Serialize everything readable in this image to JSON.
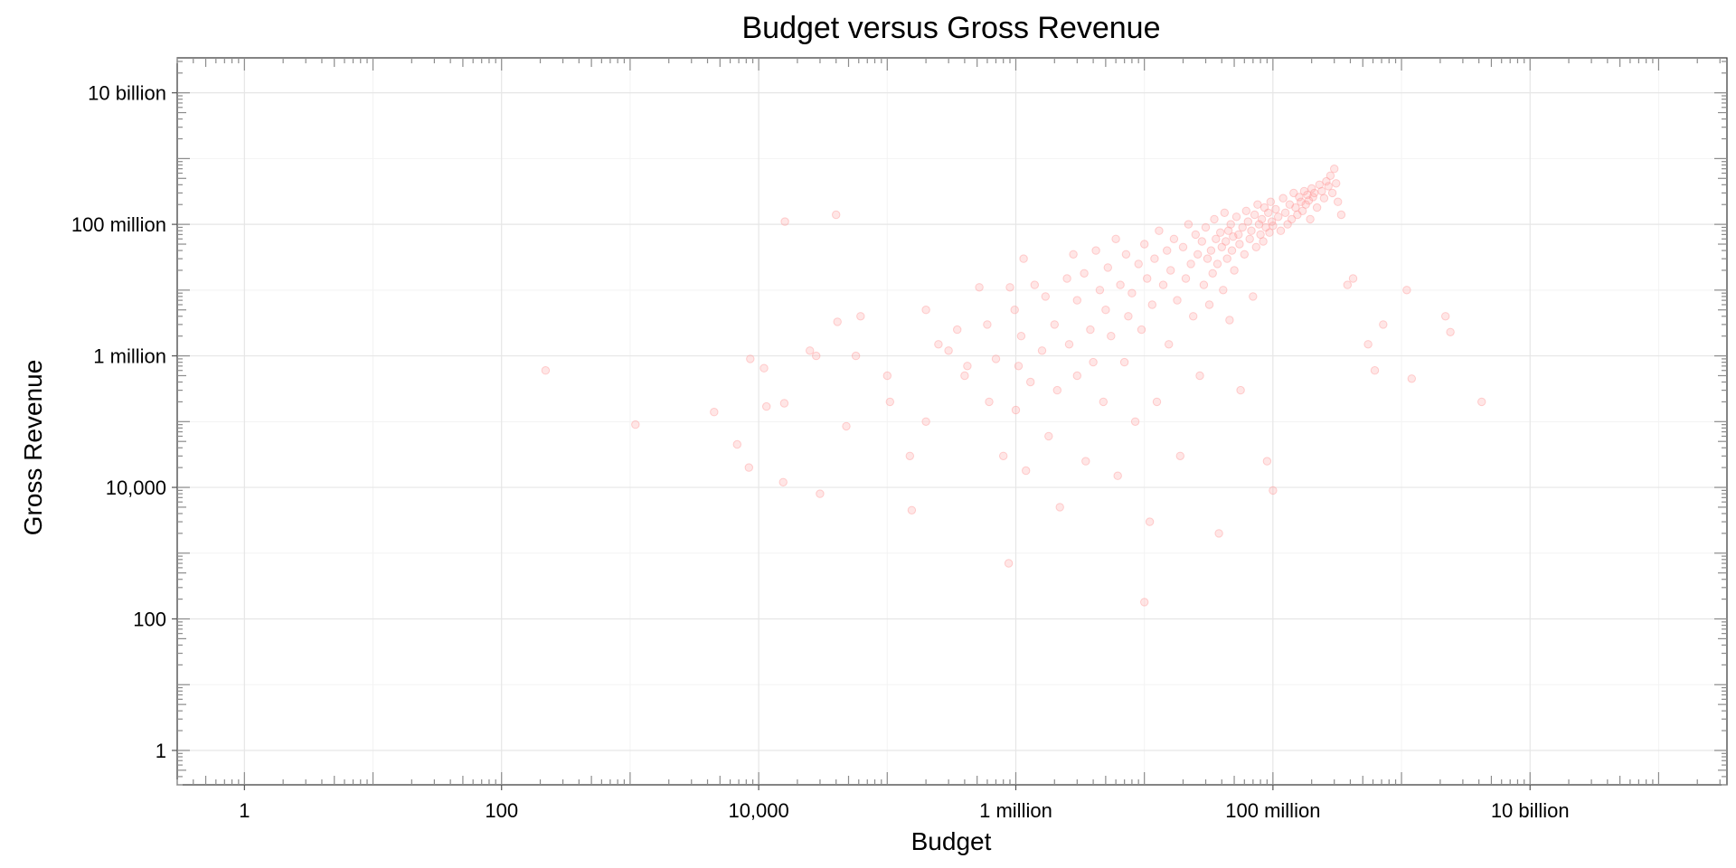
{
  "chart_data": {
    "type": "scatter",
    "title": "Budget versus Gross Revenue",
    "xlabel": "Budget",
    "ylabel": "Gross Revenue",
    "x_scale": "log10",
    "y_scale": "log10",
    "xlim": [
      0.3,
      340000000000
    ],
    "ylim": [
      0.3,
      34000000000
    ],
    "x_ticks": [
      {
        "value": 1,
        "label": "1"
      },
      {
        "value": 100,
        "label": "100"
      },
      {
        "value": 10000,
        "label": "10,000"
      },
      {
        "value": 1000000,
        "label": "1 million"
      },
      {
        "value": 100000000,
        "label": "100 million"
      },
      {
        "value": 10000000000,
        "label": "10 billion"
      }
    ],
    "y_ticks": [
      {
        "value": 1,
        "label": "1"
      },
      {
        "value": 100,
        "label": "100"
      },
      {
        "value": 10000,
        "label": "10,000"
      },
      {
        "value": 1000000,
        "label": "1 million"
      },
      {
        "value": 100000000,
        "label": "100 million"
      },
      {
        "value": 10000000000,
        "label": "10 billion"
      }
    ],
    "grid": true,
    "legend": "none",
    "point_color": "#ff9a9a",
    "point_alpha": 0.25,
    "points": [
      [
        220,
        600000
      ],
      [
        1100,
        90000
      ],
      [
        4500,
        140000
      ],
      [
        6800,
        45000
      ],
      [
        8400,
        20000
      ],
      [
        8600,
        900000
      ],
      [
        11000,
        650000
      ],
      [
        11500,
        170000
      ],
      [
        15500,
        12000
      ],
      [
        15800,
        190000
      ],
      [
        16000,
        110000000
      ],
      [
        25000,
        1200000
      ],
      [
        28000,
        1000000
      ],
      [
        30000,
        8000
      ],
      [
        40000,
        140000000
      ],
      [
        41000,
        3300000
      ],
      [
        48000,
        85000
      ],
      [
        57000,
        1000000
      ],
      [
        62000,
        4000000
      ],
      [
        100000,
        500000
      ],
      [
        105000,
        200000
      ],
      [
        150000,
        30000
      ],
      [
        155000,
        4500
      ],
      [
        200000,
        5000000
      ],
      [
        200000,
        100000
      ],
      [
        250000,
        1500000
      ],
      [
        300000,
        1200000
      ],
      [
        350000,
        2500000
      ],
      [
        400000,
        500000
      ],
      [
        420000,
        700000
      ],
      [
        520000,
        11000000
      ],
      [
        600000,
        3000000
      ],
      [
        620000,
        200000
      ],
      [
        700000,
        900000
      ],
      [
        800000,
        30000
      ],
      [
        880000,
        700
      ],
      [
        900000,
        11000000
      ],
      [
        980000,
        5000000
      ],
      [
        1000000,
        150000
      ],
      [
        1050000,
        700000
      ],
      [
        1100000,
        2000000
      ],
      [
        1150000,
        30000000
      ],
      [
        1200000,
        18000
      ],
      [
        1300000,
        400000
      ],
      [
        1400000,
        12000000
      ],
      [
        1600000,
        1200000
      ],
      [
        1700000,
        8000000
      ],
      [
        1800000,
        60000
      ],
      [
        2000000,
        3000000
      ],
      [
        2100000,
        300000
      ],
      [
        2200000,
        5000
      ],
      [
        2500000,
        15000000
      ],
      [
        2600000,
        1500000
      ],
      [
        2800000,
        35000000
      ],
      [
        3000000,
        500000
      ],
      [
        3000000,
        7000000
      ],
      [
        3400000,
        18000000
      ],
      [
        3500000,
        25000
      ],
      [
        3800000,
        2500000
      ],
      [
        4000000,
        800000
      ],
      [
        4200000,
        40000000
      ],
      [
        4500000,
        10000000
      ],
      [
        4800000,
        200000
      ],
      [
        5000000,
        5000000
      ],
      [
        5200000,
        22000000
      ],
      [
        5500000,
        2000000
      ],
      [
        6000000,
        60000000
      ],
      [
        6200000,
        15000
      ],
      [
        6500000,
        12000000
      ],
      [
        7000000,
        800000
      ],
      [
        7200000,
        35000000
      ],
      [
        7500000,
        4000000
      ],
      [
        8000000,
        9000000
      ],
      [
        8500000,
        100000
      ],
      [
        9000000,
        25000000
      ],
      [
        9500000,
        2500000
      ],
      [
        10000000,
        180
      ],
      [
        10000000,
        50000000
      ],
      [
        10500000,
        15000000
      ],
      [
        11000000,
        3000
      ],
      [
        11500000,
        6000000
      ],
      [
        12000000,
        30000000
      ],
      [
        12500000,
        200000
      ],
      [
        13000000,
        80000000
      ],
      [
        14000000,
        12000000
      ],
      [
        15000000,
        40000000
      ],
      [
        15500000,
        1500000
      ],
      [
        16000000,
        20000000
      ],
      [
        17000000,
        60000000
      ],
      [
        18000000,
        7000000
      ],
      [
        19000000,
        30000
      ],
      [
        20000000,
        45000000
      ],
      [
        21000000,
        15000000
      ],
      [
        22000000,
        100000000
      ],
      [
        23000000,
        25000000
      ],
      [
        24000000,
        4000000
      ],
      [
        25000000,
        70000000
      ],
      [
        26000000,
        35000000
      ],
      [
        27000000,
        500000
      ],
      [
        28000000,
        55000000
      ],
      [
        29000000,
        12000000
      ],
      [
        30000000,
        90000000
      ],
      [
        31000000,
        30000000
      ],
      [
        32000000,
        6000000
      ],
      [
        33000000,
        40000000
      ],
      [
        34000000,
        18000000
      ],
      [
        35000000,
        120000000
      ],
      [
        36000000,
        60000000
      ],
      [
        37000000,
        25000000
      ],
      [
        38000000,
        2000
      ],
      [
        39000000,
        75000000
      ],
      [
        40000000,
        45000000
      ],
      [
        41000000,
        10000000
      ],
      [
        42000000,
        150000000
      ],
      [
        43000000,
        55000000
      ],
      [
        44000000,
        30000000
      ],
      [
        45000000,
        80000000
      ],
      [
        46000000,
        3500000
      ],
      [
        47000000,
        100000000
      ],
      [
        48000000,
        40000000
      ],
      [
        49000000,
        65000000
      ],
      [
        50000000,
        20000000
      ],
      [
        52000000,
        130000000
      ],
      [
        54000000,
        70000000
      ],
      [
        55000000,
        50000000
      ],
      [
        56000000,
        300000
      ],
      [
        58000000,
        90000000
      ],
      [
        60000000,
        35000000
      ],
      [
        62000000,
        160000000
      ],
      [
        64000000,
        110000000
      ],
      [
        66000000,
        60000000
      ],
      [
        68000000,
        80000000
      ],
      [
        70000000,
        8000000
      ],
      [
        72000000,
        140000000
      ],
      [
        74000000,
        45000000
      ],
      [
        76000000,
        200000000
      ],
      [
        78000000,
        100000000
      ],
      [
        80000000,
        70000000
      ],
      [
        82000000,
        120000000
      ],
      [
        84000000,
        55000000
      ],
      [
        86000000,
        180000000
      ],
      [
        88000000,
        90000000
      ],
      [
        90000000,
        25000
      ],
      [
        92000000,
        150000000
      ],
      [
        94000000,
        75000000
      ],
      [
        96000000,
        220000000
      ],
      [
        98000000,
        110000000
      ],
      [
        100000000,
        9000
      ],
      [
        100000000,
        95000000
      ],
      [
        105000000,
        170000000
      ],
      [
        110000000,
        130000000
      ],
      [
        115000000,
        80000000
      ],
      [
        120000000,
        250000000
      ],
      [
        125000000,
        150000000
      ],
      [
        130000000,
        100000000
      ],
      [
        135000000,
        200000000
      ],
      [
        140000000,
        120000000
      ],
      [
        145000000,
        300000000
      ],
      [
        150000000,
        180000000
      ],
      [
        155000000,
        140000000
      ],
      [
        160000000,
        260000000
      ],
      [
        165000000,
        220000000
      ],
      [
        170000000,
        160000000
      ],
      [
        175000000,
        320000000
      ],
      [
        180000000,
        200000000
      ],
      [
        185000000,
        280000000
      ],
      [
        190000000,
        230000000
      ],
      [
        195000000,
        120000000
      ],
      [
        200000000,
        350000000
      ],
      [
        205000000,
        260000000
      ],
      [
        210000000,
        300000000
      ],
      [
        220000000,
        180000000
      ],
      [
        230000000,
        400000000
      ],
      [
        240000000,
        320000000
      ],
      [
        250000000,
        250000000
      ],
      [
        260000000,
        450000000
      ],
      [
        270000000,
        380000000
      ],
      [
        280000000,
        550000000
      ],
      [
        290000000,
        300000000
      ],
      [
        300000000,
        700000000
      ],
      [
        310000000,
        420000000
      ],
      [
        320000000,
        220000000
      ],
      [
        340000000,
        140000000
      ],
      [
        380000000,
        12000000
      ],
      [
        420000000,
        15000000
      ],
      [
        550000000,
        1500000
      ],
      [
        620000000,
        600000
      ],
      [
        720000000,
        3000000
      ],
      [
        1100000000,
        10000000
      ],
      [
        1200000000,
        450000
      ],
      [
        2200000000,
        4000000
      ],
      [
        2400000000,
        2300000
      ],
      [
        4200000000,
        200000
      ]
    ]
  }
}
